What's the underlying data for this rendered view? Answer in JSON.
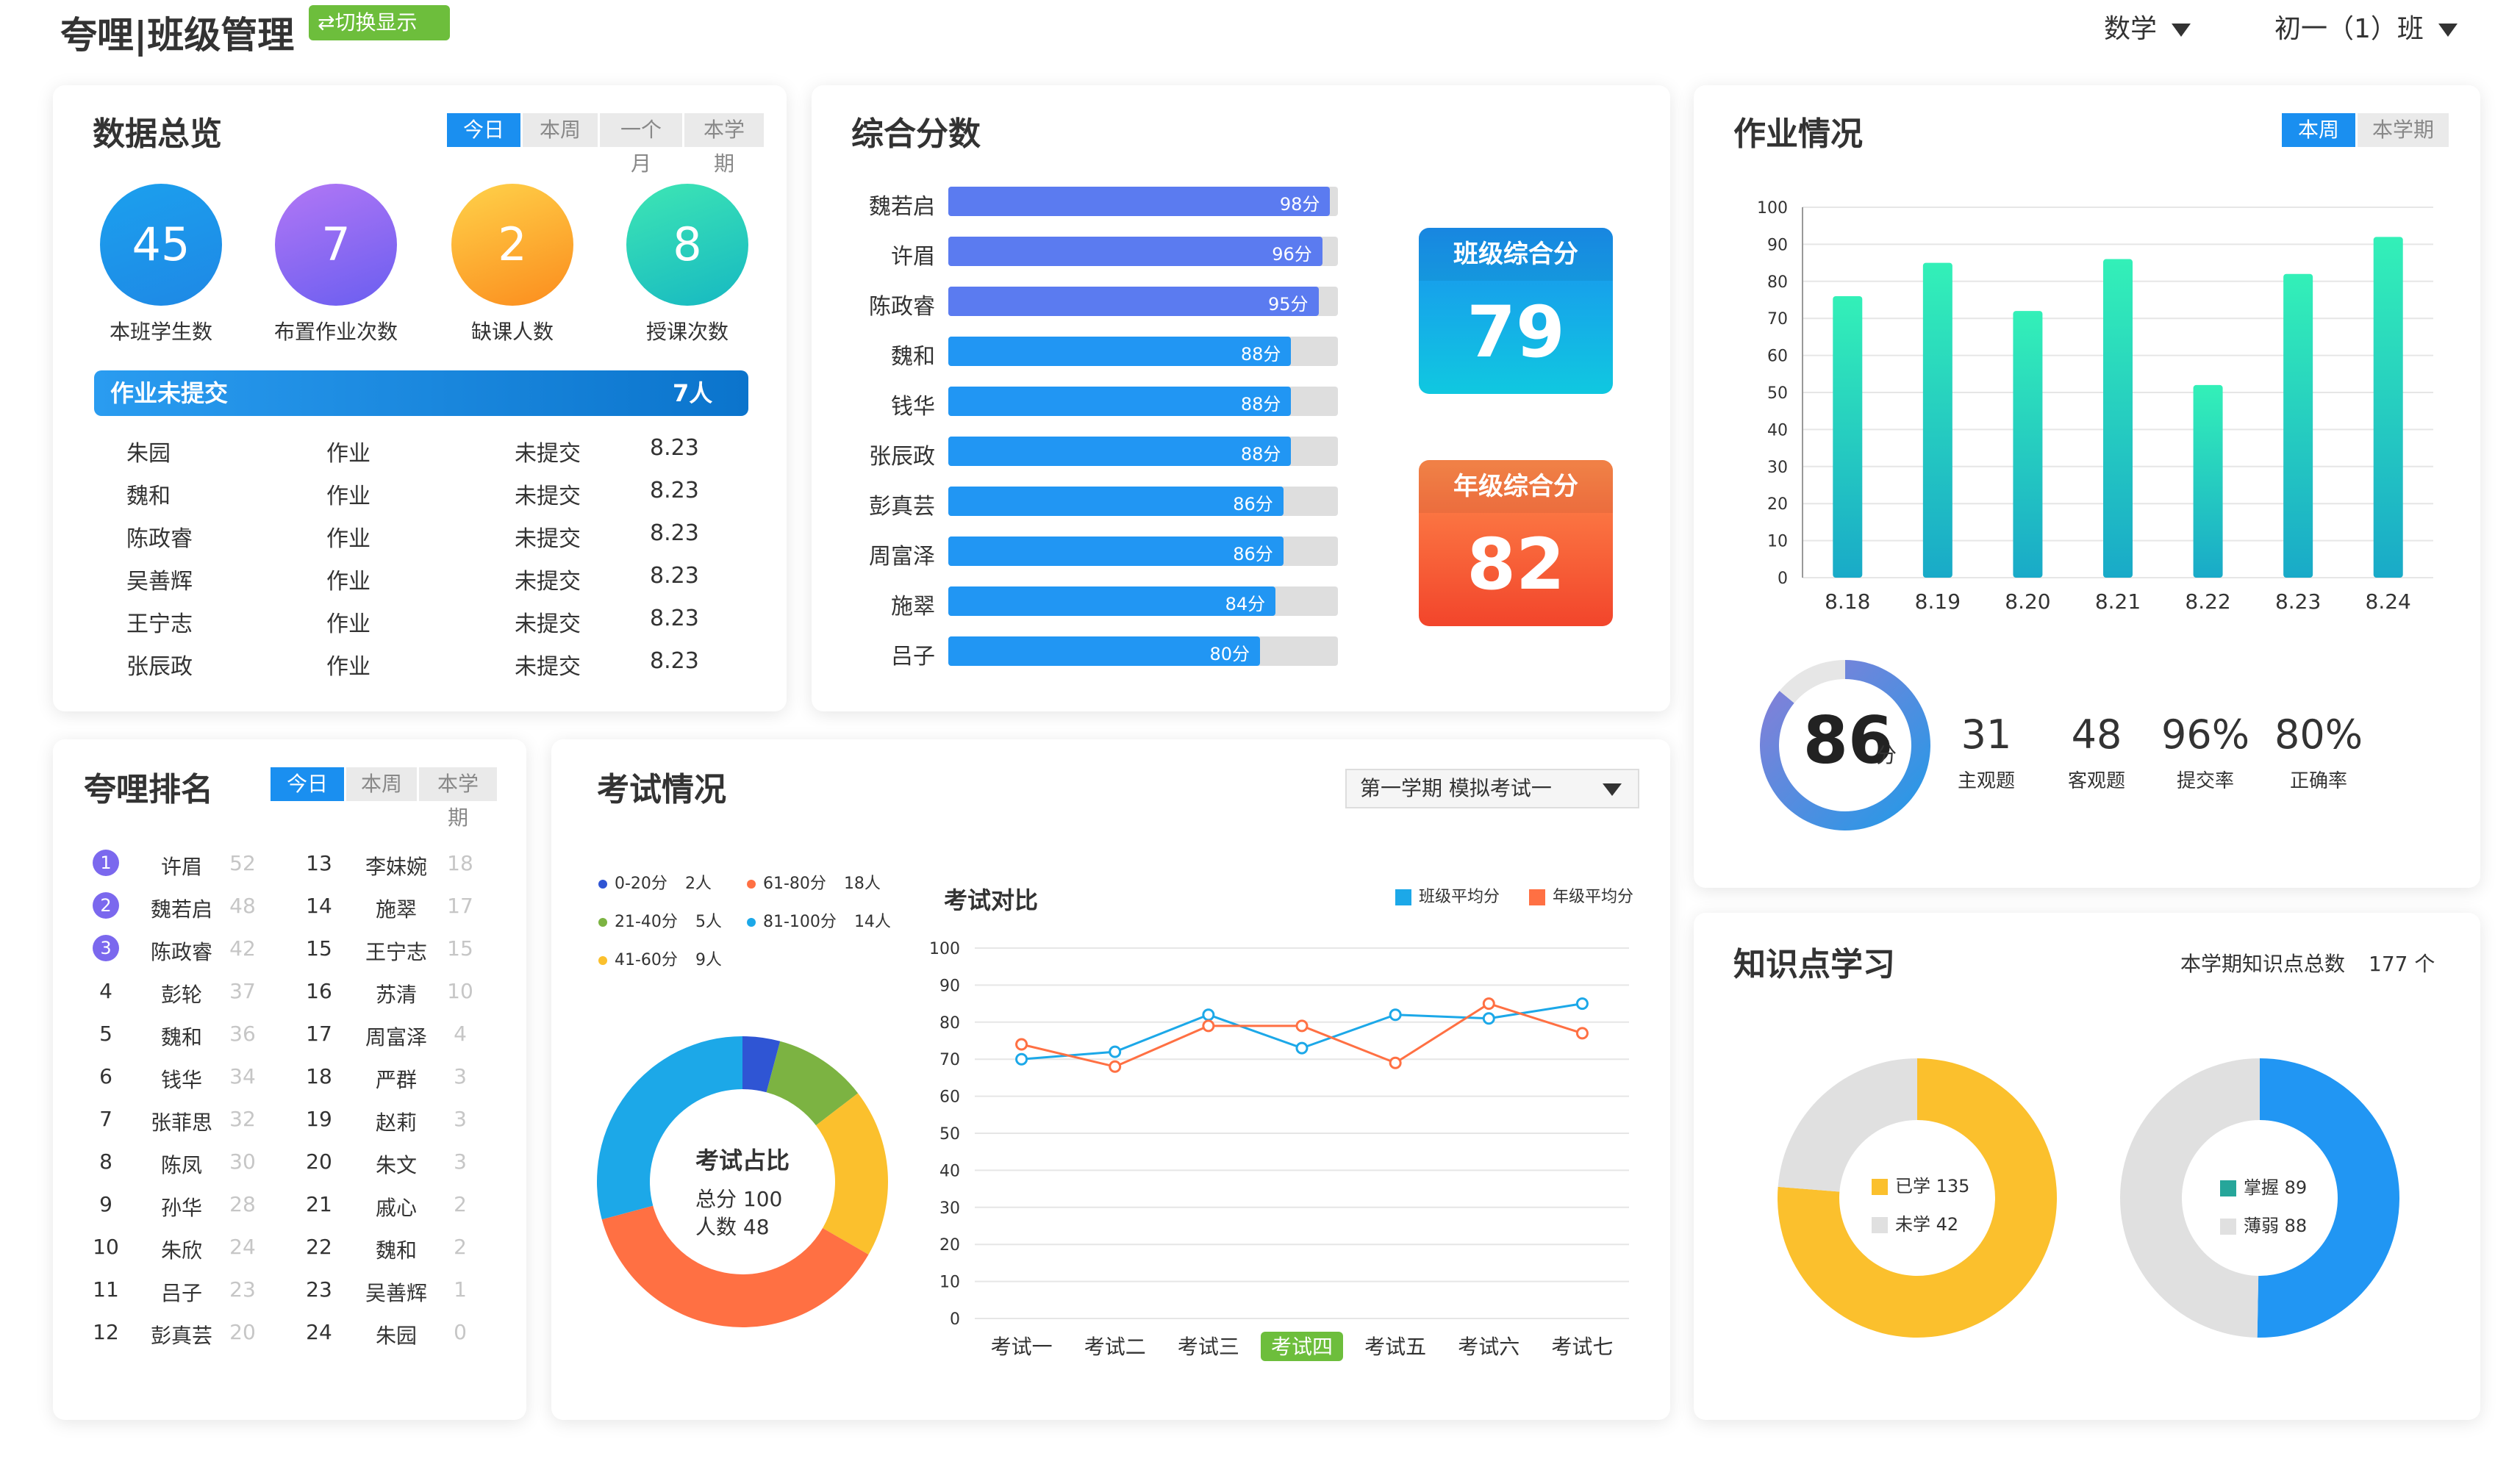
{
  "header": {
    "title": "夸哩|班级管理",
    "switch_label": "⇄切换显示",
    "subject": "数学",
    "class": "初一（1）班"
  },
  "overview": {
    "title": "数据总览",
    "tabs": [
      "今日",
      "本周",
      "一个月",
      "本学期"
    ],
    "stats": [
      {
        "value": "45",
        "label": "本班学生数"
      },
      {
        "value": "7",
        "label": "布置作业次数"
      },
      {
        "value": "2",
        "label": "缺课人数"
      },
      {
        "value": "8",
        "label": "授课次数"
      }
    ],
    "unsubmitted_label": "作业未提交",
    "unsubmitted_count": "7人",
    "rows": [
      {
        "name": "朱园",
        "type": "作业",
        "status": "未提交",
        "date": "8.23"
      },
      {
        "name": "魏和",
        "type": "作业",
        "status": "未提交",
        "date": "8.23"
      },
      {
        "name": "陈政睿",
        "type": "作业",
        "status": "未提交",
        "date": "8.23"
      },
      {
        "name": "吴善辉",
        "type": "作业",
        "status": "未提交",
        "date": "8.23"
      },
      {
        "name": "王宁志",
        "type": "作业",
        "status": "未提交",
        "date": "8.23"
      },
      {
        "name": "张辰政",
        "type": "作业",
        "status": "未提交",
        "date": "8.23"
      }
    ]
  },
  "composite": {
    "title": "综合分数",
    "bars": [
      {
        "name": "魏若启",
        "score": 98,
        "label": "98分"
      },
      {
        "name": "许眉",
        "score": 96,
        "label": "96分"
      },
      {
        "name": "陈政睿",
        "score": 95,
        "label": "95分"
      },
      {
        "name": "魏和",
        "score": 88,
        "label": "88分"
      },
      {
        "name": "钱华",
        "score": 88,
        "label": "88分"
      },
      {
        "name": "张辰政",
        "score": 88,
        "label": "88分"
      },
      {
        "name": "彭真芸",
        "score": 86,
        "label": "86分"
      },
      {
        "name": "周富泽",
        "score": 86,
        "label": "86分"
      },
      {
        "name": "施翠",
        "score": 84,
        "label": "84分"
      },
      {
        "name": "吕子",
        "score": 80,
        "label": "80分"
      }
    ],
    "class_score_label": "班级综合分",
    "class_score": "79",
    "grade_score_label": "年级综合分",
    "grade_score": "82"
  },
  "homework": {
    "title": "作业情况",
    "tabs": [
      "本周",
      "本学期"
    ],
    "donut_value": "86",
    "donut_unit": "分",
    "donut_fraction": 0.86,
    "stats": [
      {
        "value": "31",
        "label": "主观题"
      },
      {
        "value": "48",
        "label": "客观题"
      },
      {
        "value": "96%",
        "label": "提交率"
      },
      {
        "value": "80%",
        "label": "正确率"
      }
    ]
  },
  "ranking": {
    "title": "夸哩排名",
    "tabs": [
      "今日",
      "本周",
      "本学期"
    ],
    "left": [
      {
        "rank": "1",
        "name": "许眉",
        "score": "52"
      },
      {
        "rank": "2",
        "name": "魏若启",
        "score": "48"
      },
      {
        "rank": "3",
        "name": "陈政睿",
        "score": "42"
      },
      {
        "rank": "4",
        "name": "彭轮",
        "score": "37"
      },
      {
        "rank": "5",
        "name": "魏和",
        "score": "36"
      },
      {
        "rank": "6",
        "name": "钱华",
        "score": "34"
      },
      {
        "rank": "7",
        "name": "张菲思",
        "score": "32"
      },
      {
        "rank": "8",
        "name": "陈凤",
        "score": "30"
      },
      {
        "rank": "9",
        "name": "孙华",
        "score": "28"
      },
      {
        "rank": "10",
        "name": "朱欣",
        "score": "24"
      },
      {
        "rank": "11",
        "name": "吕子",
        "score": "23"
      },
      {
        "rank": "12",
        "name": "彭真芸",
        "score": "20"
      }
    ],
    "right": [
      {
        "rank": "13",
        "name": "李妹婉",
        "score": "18"
      },
      {
        "rank": "14",
        "name": "施翠",
        "score": "17"
      },
      {
        "rank": "15",
        "name": "王宁志",
        "score": "15"
      },
      {
        "rank": "16",
        "name": "苏清",
        "score": "10"
      },
      {
        "rank": "17",
        "name": "周富泽",
        "score": "4"
      },
      {
        "rank": "18",
        "name": "严群",
        "score": "3"
      },
      {
        "rank": "19",
        "name": "赵莉",
        "score": "3"
      },
      {
        "rank": "20",
        "name": "朱文",
        "score": "3"
      },
      {
        "rank": "21",
        "name": "戚心",
        "score": "2"
      },
      {
        "rank": "22",
        "name": "魏和",
        "score": "2"
      },
      {
        "rank": "23",
        "name": "吴善辉",
        "score": "1"
      },
      {
        "rank": "24",
        "name": "朱园",
        "score": "0"
      }
    ]
  },
  "exam": {
    "title": "考试情况",
    "select_value": "第一学期 模拟考试一",
    "donut_title": "考试占比",
    "donut_total": "总分 100",
    "donut_count": "人数 48",
    "legend": [
      {
        "label": "0-20分",
        "count": "2人",
        "color": "#2f55d4"
      },
      {
        "label": "61-80分",
        "count": "18人",
        "color": "#ff7043"
      },
      {
        "label": "21-40分",
        "count": "5人",
        "color": "#7cb342"
      },
      {
        "label": "81-100分",
        "count": "14人",
        "color": "#1ca8e8"
      },
      {
        "label": "41-60分",
        "count": "9人",
        "color": "#fbc02d"
      }
    ],
    "compare_title": "考试对比",
    "compare_legend": [
      "班级平均分",
      "年级平均分"
    ],
    "highlight_exam": "考试四"
  },
  "knowledge": {
    "title": "知识点学习",
    "total_label": "本学期知识点总数",
    "total_value": "177 个",
    "learned": {
      "label": "已学",
      "value": "135"
    },
    "unlearned": {
      "label": "未学",
      "value": "42"
    },
    "mastered": {
      "label": "掌握",
      "value": "89"
    },
    "weak": {
      "label": "薄弱",
      "value": "88"
    }
  },
  "chart_data": [
    {
      "type": "bar",
      "title": "",
      "categories": [
        "8.18",
        "8.19",
        "8.20",
        "8.21",
        "8.22",
        "8.23",
        "8.24"
      ],
      "values": [
        76,
        85,
        72,
        86,
        52,
        82,
        92
      ],
      "ylim": [
        0,
        100
      ],
      "yticks": [
        "0",
        "10",
        "20",
        "30",
        "40",
        "50",
        "60",
        "70",
        "80",
        "90",
        "100"
      ],
      "grid": true
    },
    {
      "type": "pie",
      "title": "考试占比",
      "categories": [
        "0-20分",
        "21-40分",
        "41-60分",
        "61-80分",
        "81-100分"
      ],
      "values": [
        2,
        5,
        9,
        18,
        14
      ],
      "colors": [
        "#2f55d4",
        "#7cb342",
        "#fbc02d",
        "#ff7043",
        "#1ca8e8"
      ]
    },
    {
      "type": "line",
      "title": "考试对比",
      "categories": [
        "考试一",
        "考试二",
        "考试三",
        "考试四",
        "考试五",
        "考试六",
        "考试七"
      ],
      "ylim": [
        0,
        100
      ],
      "yticks": [
        "0",
        "10",
        "20",
        "30",
        "40",
        "50",
        "60",
        "70",
        "80",
        "90",
        "100"
      ],
      "series": [
        {
          "name": "班级平均分",
          "values": [
            70,
            72,
            82,
            73,
            82,
            81,
            85
          ],
          "color": "#1ca8e8"
        },
        {
          "name": "年级平均分",
          "values": [
            74,
            68,
            79,
            79,
            69,
            85,
            77
          ],
          "color": "#ff7043"
        }
      ],
      "grid": true
    },
    {
      "type": "pie",
      "categories": [
        "已学",
        "未学"
      ],
      "values": [
        135,
        42
      ],
      "colors": [
        "#fbc02d",
        "#e0e0e0"
      ]
    },
    {
      "type": "pie",
      "categories": [
        "掌握",
        "薄弱"
      ],
      "values": [
        89,
        88
      ],
      "colors": [
        "#2196f3",
        "#e0e0e0"
      ]
    }
  ]
}
